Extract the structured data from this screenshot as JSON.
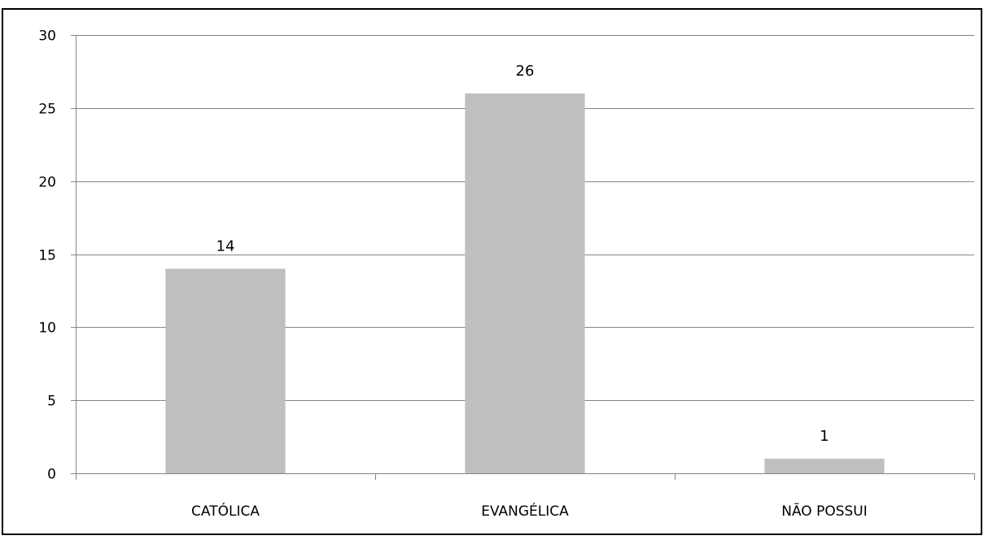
{
  "chart_data": {
    "type": "bar",
    "categories": [
      "CATÓLICA",
      "EVANGÉLICA",
      "NÃO POSSUI"
    ],
    "values": [
      14,
      26,
      1
    ],
    "ylim": [
      0,
      30
    ],
    "yticks": [
      0,
      5,
      10,
      15,
      20,
      25,
      30
    ],
    "grid": true,
    "data_labels": true,
    "bar_color": "#bfbfbf",
    "grid_color": "#868686",
    "axis_color": "#868686"
  }
}
